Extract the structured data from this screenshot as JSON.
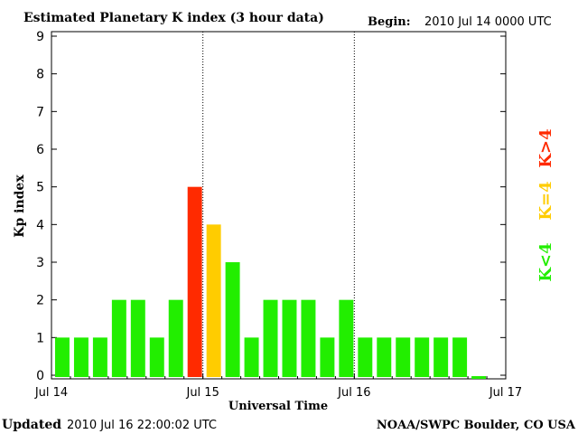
{
  "header": {
    "title": "Estimated Planetary K index (3 hour data)",
    "begin_label": "Begin:",
    "begin_value": "2010 Jul 14 0000 UTC"
  },
  "footer": {
    "updated_label": "Updated",
    "updated_value": "2010 Jul 16 22:00:02 UTC",
    "source": "NOAA/SWPC Boulder, CO USA"
  },
  "legend": {
    "k_lt_4": "K<4",
    "k_eq_4": "K=4",
    "k_gt_4": "K>4"
  },
  "colors": {
    "k_lt_4": "#22ee00",
    "k_eq_4": "#ffcc00",
    "k_gt_4": "#ff2a00",
    "day_divider": "#000000"
  },
  "chart_data": {
    "type": "bar",
    "title": "Estimated Planetary K index (3 hour data)",
    "xlabel": "Universal Time",
    "ylabel": "Kp index",
    "ylim": [
      0,
      9
    ],
    "yticks": [
      "0",
      "1",
      "2",
      "3",
      "4",
      "5",
      "6",
      "7",
      "8",
      "9"
    ],
    "xticks": [
      "Jul 14",
      "Jul 15",
      "Jul 16",
      "Jul 17"
    ],
    "bars_per_day": 8,
    "values": [
      1,
      1,
      1,
      2,
      2,
      1,
      2,
      5,
      4,
      3,
      1,
      2,
      2,
      2,
      1,
      2,
      1,
      1,
      1,
      1,
      1,
      1,
      0.07
    ],
    "color_rule": "green if K<4, yellow if K=4, red if K>4",
    "grid": false,
    "day_dividers": [
      "Jul 15",
      "Jul 16"
    ]
  }
}
